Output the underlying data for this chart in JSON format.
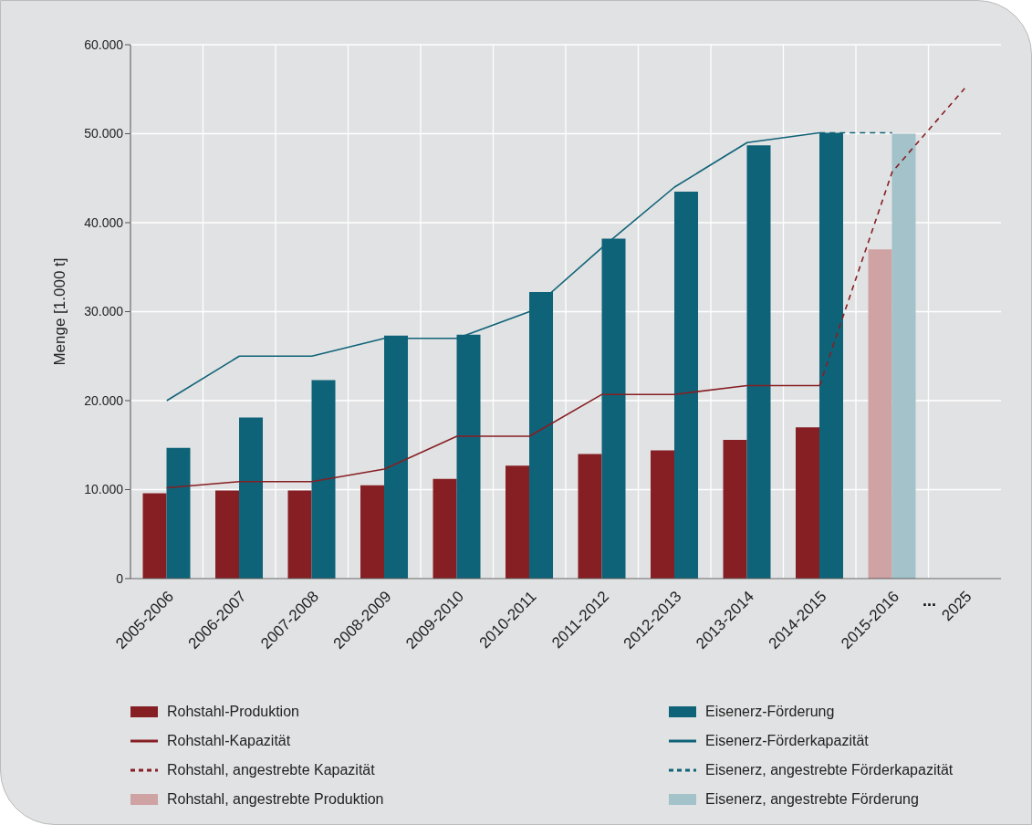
{
  "chart_data": {
    "type": "bar",
    "ylabel": "Menge [1.000 t]",
    "categories": [
      "2005-2006",
      "2006-2007",
      "2007-2008",
      "2008-2009",
      "2009-2010",
      "2010-2011",
      "2011-2012",
      "2012-2013",
      "2013-2014",
      "2014-2015",
      "2015-2016",
      "2025"
    ],
    "series": [
      {
        "name": "Rohstahl-Produktion",
        "color": "#861f24",
        "values": [
          9600,
          9900,
          9900,
          10500,
          11200,
          12700,
          14000,
          14400,
          15600,
          17000,
          null,
          null
        ]
      },
      {
        "name": "Rohstahl-Kapazität",
        "type": "line",
        "color": "#861f24",
        "values": [
          10200,
          10900,
          10900,
          12300,
          16000,
          16000,
          20700,
          20700,
          21700,
          21700,
          null,
          null
        ]
      },
      {
        "name": "Rohstahl, angestrebte Kapazität",
        "type": "line",
        "line_style": "dashed",
        "color": "#861f24",
        "values": [
          null,
          null,
          null,
          null,
          null,
          null,
          null,
          null,
          null,
          21700,
          45700,
          55100
        ]
      },
      {
        "name": "Rohstahl, angestrebte Produktion",
        "color": "#cfa2a4",
        "values": [
          null,
          null,
          null,
          null,
          null,
          null,
          null,
          null,
          null,
          null,
          37000,
          null
        ]
      },
      {
        "name": "Eisenerz-Förderung",
        "color": "#0f6378",
        "values": [
          14700,
          18100,
          22300,
          27300,
          27400,
          32200,
          38200,
          43500,
          48700,
          50100,
          null,
          null
        ]
      },
      {
        "name": "Eisenerz-Förderkapazität",
        "type": "line",
        "color": "#0f6378",
        "values": [
          20000,
          25000,
          25000,
          27000,
          27000,
          30000,
          37200,
          44000,
          49000,
          50100,
          null,
          null
        ]
      },
      {
        "name": "Eisenerz, angestrebte Förderkapazität",
        "type": "line",
        "line_style": "dashed",
        "color": "#0f6378",
        "values": [
          null,
          null,
          null,
          null,
          null,
          null,
          null,
          null,
          null,
          50100,
          50100,
          null
        ]
      },
      {
        "name": "Eisenerz, angestrebte Förderung",
        "color": "#a3c2ca",
        "values": [
          null,
          null,
          null,
          null,
          null,
          null,
          null,
          null,
          null,
          null,
          50000,
          null
        ]
      }
    ],
    "ylim": [
      0,
      60000
    ],
    "yticks": [
      0,
      {
        "value": 10000,
        "label": "10.000"
      },
      {
        "value": 20000,
        "label": "20.000"
      },
      {
        "value": 30000,
        "label": "30.000"
      },
      {
        "value": 40000,
        "label": "40.000"
      },
      {
        "value": 50000,
        "label": "50.000"
      },
      {
        "value": 60000,
        "label": "60.000"
      }
    ],
    "annotations": [
      "..."
    ],
    "grid": true,
    "legend": "bottom",
    "marker": "none"
  }
}
